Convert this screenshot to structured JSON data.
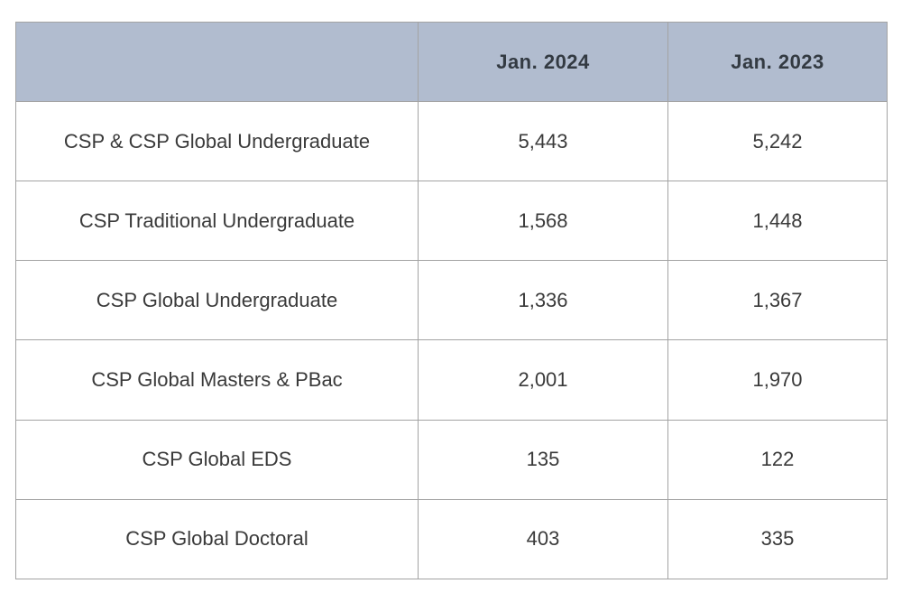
{
  "chart_data": {
    "type": "table",
    "columns": [
      "",
      "Jan. 2024",
      "Jan. 2023"
    ],
    "rows": [
      {
        "label": "CSP & CSP Global Undergraduate",
        "values": [
          "5,443",
          "5,242"
        ]
      },
      {
        "label": "CSP Traditional Undergraduate",
        "values": [
          "1,568",
          "1,448"
        ]
      },
      {
        "label": "CSP Global Undergraduate",
        "values": [
          "1,336",
          "1,367"
        ]
      },
      {
        "label": "CSP Global Masters & PBac",
        "values": [
          "2,001",
          "1,970"
        ]
      },
      {
        "label": "CSP Global EDS",
        "values": [
          "135",
          "122"
        ]
      },
      {
        "label": "CSP Global Doctoral",
        "values": [
          "403",
          "335"
        ]
      }
    ],
    "colors": {
      "header_bg": "#b1bccf",
      "border": "#a3a3a3"
    }
  }
}
